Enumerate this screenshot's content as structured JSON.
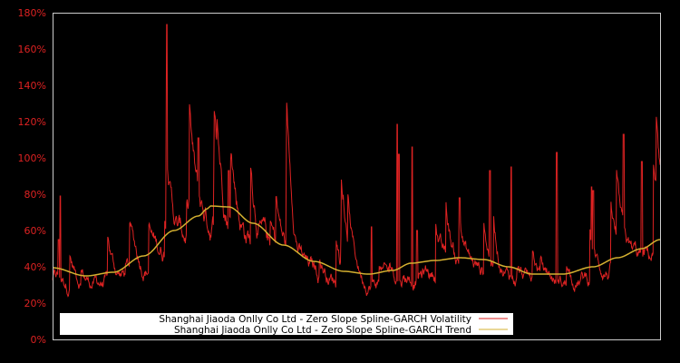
{
  "chart_data": {
    "type": "line",
    "title": "",
    "xlabel": "",
    "ylabel": "",
    "ylim": [
      0,
      180
    ],
    "y_ticks": [
      0,
      20,
      40,
      60,
      80,
      100,
      120,
      140,
      160,
      180
    ],
    "y_tick_labels": [
      "0%",
      "20%",
      "40%",
      "60%",
      "80%",
      "100%",
      "120%",
      "140%",
      "160%",
      "180%"
    ],
    "grid": false,
    "legend_position": "lower left",
    "x_range_norm": [
      0,
      1
    ],
    "series": [
      {
        "name": "Shanghai Jiaoda Onlly Co Ltd - Zero Slope Spline-GARCH Volatility",
        "color": "#dd2222",
        "notable_points": [
          {
            "x": 0.0,
            "y": 30
          },
          {
            "x": 0.01,
            "y": 55
          },
          {
            "x": 0.013,
            "y": 79
          },
          {
            "x": 0.04,
            "y": 30
          },
          {
            "x": 0.08,
            "y": 24
          },
          {
            "x": 0.12,
            "y": 27
          },
          {
            "x": 0.14,
            "y": 40
          },
          {
            "x": 0.185,
            "y": 65
          },
          {
            "x": 0.187,
            "y": 122
          },
          {
            "x": 0.188,
            "y": 173.5
          },
          {
            "x": 0.19,
            "y": 70
          },
          {
            "x": 0.24,
            "y": 111
          },
          {
            "x": 0.29,
            "y": 93
          },
          {
            "x": 0.33,
            "y": 60
          },
          {
            "x": 0.4,
            "y": 40
          },
          {
            "x": 0.46,
            "y": 30
          },
          {
            "x": 0.5,
            "y": 38
          },
          {
            "x": 0.525,
            "y": 62
          },
          {
            "x": 0.567,
            "y": 118.5
          },
          {
            "x": 0.57,
            "y": 102
          },
          {
            "x": 0.592,
            "y": 106
          },
          {
            "x": 0.6,
            "y": 60
          },
          {
            "x": 0.62,
            "y": 32
          },
          {
            "x": 0.67,
            "y": 78
          },
          {
            "x": 0.72,
            "y": 93
          },
          {
            "x": 0.755,
            "y": 95
          },
          {
            "x": 0.8,
            "y": 22
          },
          {
            "x": 0.83,
            "y": 103
          },
          {
            "x": 0.887,
            "y": 84
          },
          {
            "x": 0.89,
            "y": 82
          },
          {
            "x": 0.94,
            "y": 113
          },
          {
            "x": 0.97,
            "y": 98
          },
          {
            "x": 1.0,
            "y": 40
          }
        ]
      },
      {
        "name": "Shanghai Jiaoda Onlly Co Ltd - Zero Slope Spline-GARCH Trend",
        "color": "#d4b030",
        "points": [
          {
            "x": 0.0,
            "y": 39.5
          },
          {
            "x": 0.055,
            "y": 35
          },
          {
            "x": 0.1,
            "y": 37
          },
          {
            "x": 0.15,
            "y": 46
          },
          {
            "x": 0.2,
            "y": 60
          },
          {
            "x": 0.24,
            "y": 68
          },
          {
            "x": 0.255,
            "y": 72
          },
          {
            "x": 0.255,
            "y": 72
          },
          {
            "x": 0.26,
            "y": 73.5
          },
          {
            "x": 0.29,
            "y": 73
          },
          {
            "x": 0.33,
            "y": 64
          },
          {
            "x": 0.38,
            "y": 52
          },
          {
            "x": 0.43,
            "y": 43
          },
          {
            "x": 0.48,
            "y": 37.5
          },
          {
            "x": 0.52,
            "y": 36
          },
          {
            "x": 0.56,
            "y": 38
          },
          {
            "x": 0.59,
            "y": 42
          },
          {
            "x": 0.63,
            "y": 43.5
          },
          {
            "x": 0.67,
            "y": 45
          },
          {
            "x": 0.71,
            "y": 44
          },
          {
            "x": 0.75,
            "y": 40
          },
          {
            "x": 0.79,
            "y": 36
          },
          {
            "x": 0.84,
            "y": 36
          },
          {
            "x": 0.89,
            "y": 40
          },
          {
            "x": 0.93,
            "y": 45
          },
          {
            "x": 0.97,
            "y": 50
          },
          {
            "x": 1.0,
            "y": 55
          }
        ]
      }
    ],
    "legend": [
      {
        "label": "Shanghai Jiaoda Onlly Co Ltd - Zero Slope Spline-GARCH Volatility",
        "color": "#dd2222"
      },
      {
        "label": "Shanghai Jiaoda Onlly Co Ltd - Zero Slope Spline-GARCH Trend",
        "color": "#d4b030"
      }
    ]
  },
  "colors": {
    "background": "#000000",
    "axis": "#cccccc",
    "tick_text": "#dd2222",
    "legend_bg": "#ffffff"
  }
}
